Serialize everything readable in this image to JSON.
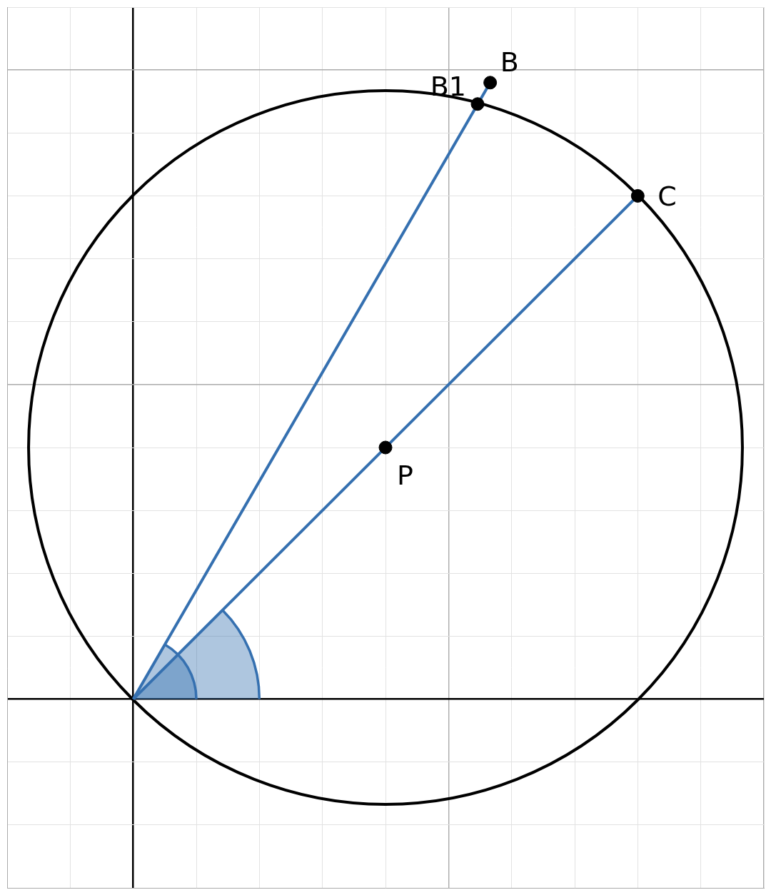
{
  "chart_data": {
    "type": "scatter",
    "xlim": [
      -2,
      10
    ],
    "ylim": [
      -3,
      11
    ],
    "xticks": [
      -2,
      -1,
      0,
      1,
      2,
      3,
      4,
      5,
      6,
      7,
      8,
      9,
      10
    ],
    "yticks": [
      -3,
      -2,
      -1,
      0,
      1,
      2,
      3,
      4,
      5,
      6,
      7,
      8,
      9,
      10,
      11
    ],
    "grid": true,
    "tick_labels": false,
    "points": [
      {
        "label": "B",
        "x": 5.66,
        "y": 9.8
      },
      {
        "label": "B1",
        "x": 5.46,
        "y": 9.46
      },
      {
        "label": "C",
        "x": 8,
        "y": 8
      },
      {
        "label": "P",
        "x": 4,
        "y": 4
      }
    ],
    "segments": [
      {
        "from": [
          0,
          0
        ],
        "to": [
          5.66,
          9.8
        ],
        "color": "#3570b0"
      },
      {
        "from": [
          0,
          0
        ],
        "to": [
          8,
          8
        ],
        "color": "#3570b0"
      }
    ],
    "circle": {
      "center": [
        4,
        4
      ],
      "radius": 5.66,
      "color": "#000000"
    },
    "angles": [
      {
        "vertex": [
          0,
          0
        ],
        "from_deg": 0,
        "to_deg": 45,
        "radius": 2,
        "color": "#3570b0"
      },
      {
        "vertex": [
          0,
          0
        ],
        "from_deg": 0,
        "to_deg": 60,
        "radius": 1,
        "color": "#3570b0"
      }
    ]
  }
}
